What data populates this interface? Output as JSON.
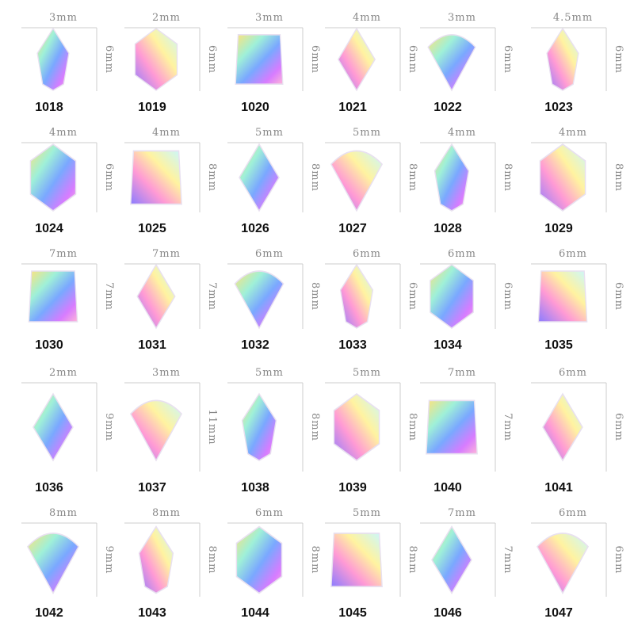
{
  "items": [
    {
      "code": "1018",
      "width": "3mm",
      "height": "6mm"
    },
    {
      "code": "1019",
      "width": "2mm",
      "height": "6mm"
    },
    {
      "code": "1020",
      "width": "3mm",
      "height": "6mm"
    },
    {
      "code": "1021",
      "width": "4mm",
      "height": "6mm"
    },
    {
      "code": "1022",
      "width": "3mm",
      "height": "6mm"
    },
    {
      "code": "1023",
      "width": "4.5mm",
      "height": "6mm"
    },
    {
      "code": "1024",
      "width": "4mm",
      "height": "6mm"
    },
    {
      "code": "1025",
      "width": "4mm",
      "height": "8mm"
    },
    {
      "code": "1026",
      "width": "5mm",
      "height": "8mm"
    },
    {
      "code": "1027",
      "width": "5mm",
      "height": "8mm"
    },
    {
      "code": "1028",
      "width": "4mm",
      "height": "8mm"
    },
    {
      "code": "1029",
      "width": "4mm",
      "height": "8mm"
    },
    {
      "code": "1030",
      "width": "7mm",
      "height": "7mm"
    },
    {
      "code": "1031",
      "width": "7mm",
      "height": "7mm"
    },
    {
      "code": "1032",
      "width": "6mm",
      "height": "8mm"
    },
    {
      "code": "1033",
      "width": "6mm",
      "height": "6mm"
    },
    {
      "code": "1034",
      "width": "6mm",
      "height": "6mm"
    },
    {
      "code": "1035",
      "width": "6mm",
      "height": "6mm"
    },
    {
      "code": "1036",
      "width": "2mm",
      "height": "9mm"
    },
    {
      "code": "1037",
      "width": "3mm",
      "height": "11mm"
    },
    {
      "code": "1038",
      "width": "5mm",
      "height": "8mm"
    },
    {
      "code": "1039",
      "width": "5mm",
      "height": "8mm"
    },
    {
      "code": "1040",
      "width": "7mm",
      "height": "7mm"
    },
    {
      "code": "1041",
      "width": "6mm",
      "height": "6mm"
    },
    {
      "code": "1042",
      "width": "8mm",
      "height": "9mm"
    },
    {
      "code": "1043",
      "width": "8mm",
      "height": "8mm"
    },
    {
      "code": "1044",
      "width": "6mm",
      "height": "8mm"
    },
    {
      "code": "1045",
      "width": "5mm",
      "height": "8mm"
    },
    {
      "code": "1046",
      "width": "7mm",
      "height": "7mm"
    },
    {
      "code": "1047",
      "width": "6mm",
      "height": "6mm"
    }
  ]
}
